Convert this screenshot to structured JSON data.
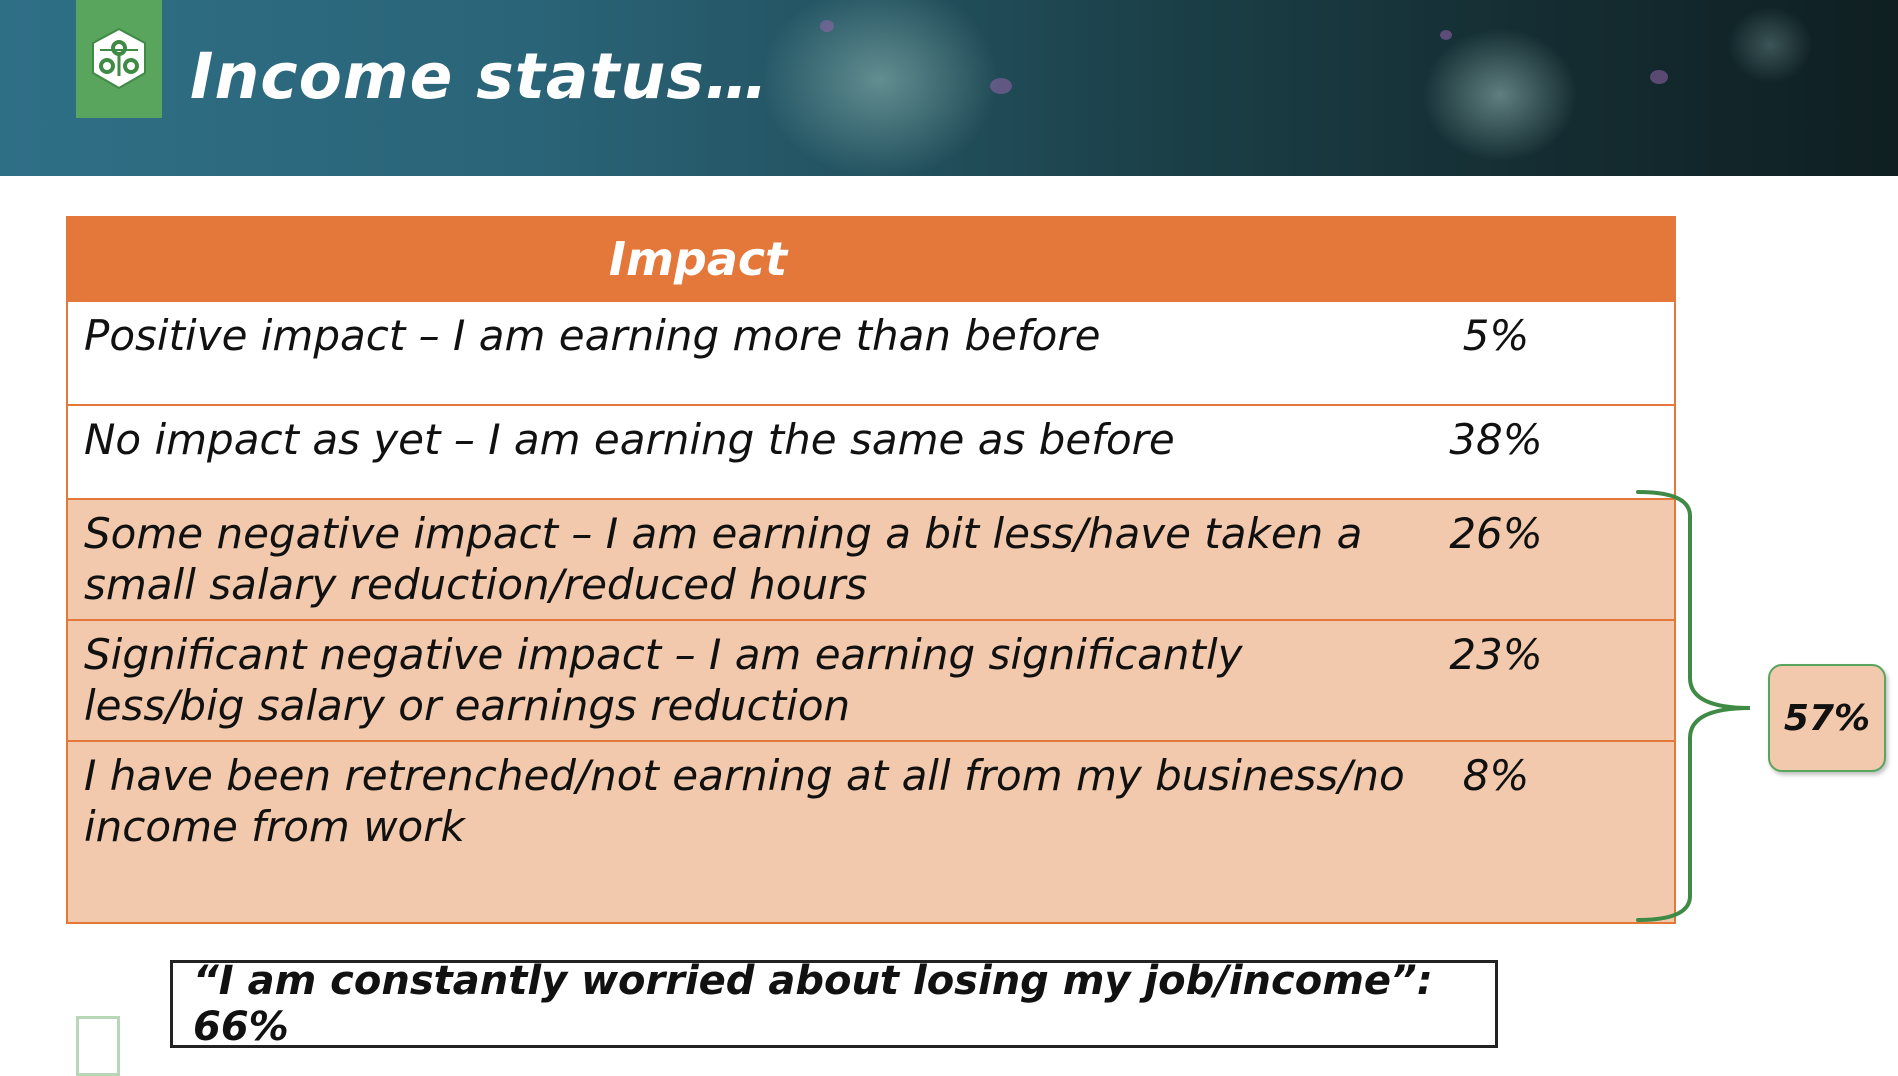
{
  "slide": {
    "title": "Income status…"
  },
  "table": {
    "header": "Impact",
    "rows": [
      {
        "label": "Positive impact – I am earning more than before",
        "value": "5%",
        "style": "white"
      },
      {
        "label": "No impact as yet – I am earning the same as before",
        "value": "38%",
        "style": "white"
      },
      {
        "label": "Some negative impact – I am earning a  bit less/have taken a small salary reduction/reduced hours",
        "value": "26%",
        "style": "peach"
      },
      {
        "label": "Significant negative impact – I am earning significantly less/big salary or earnings reduction",
        "value": "23%",
        "style": "peach"
      },
      {
        "label": "I have been retrenched/not earning at all from my business/no income from work",
        "value": "8%",
        "style": "peach"
      }
    ]
  },
  "total": {
    "value": "57%"
  },
  "quote": {
    "text": "“I am constantly worried about losing my job/income”:  66%"
  },
  "colors": {
    "accent_orange": "#e4773a",
    "peach": "#f2c9ac",
    "brand_green": "#5aa55e"
  },
  "icons": {
    "logo": "old-mutual-logo-icon"
  }
}
